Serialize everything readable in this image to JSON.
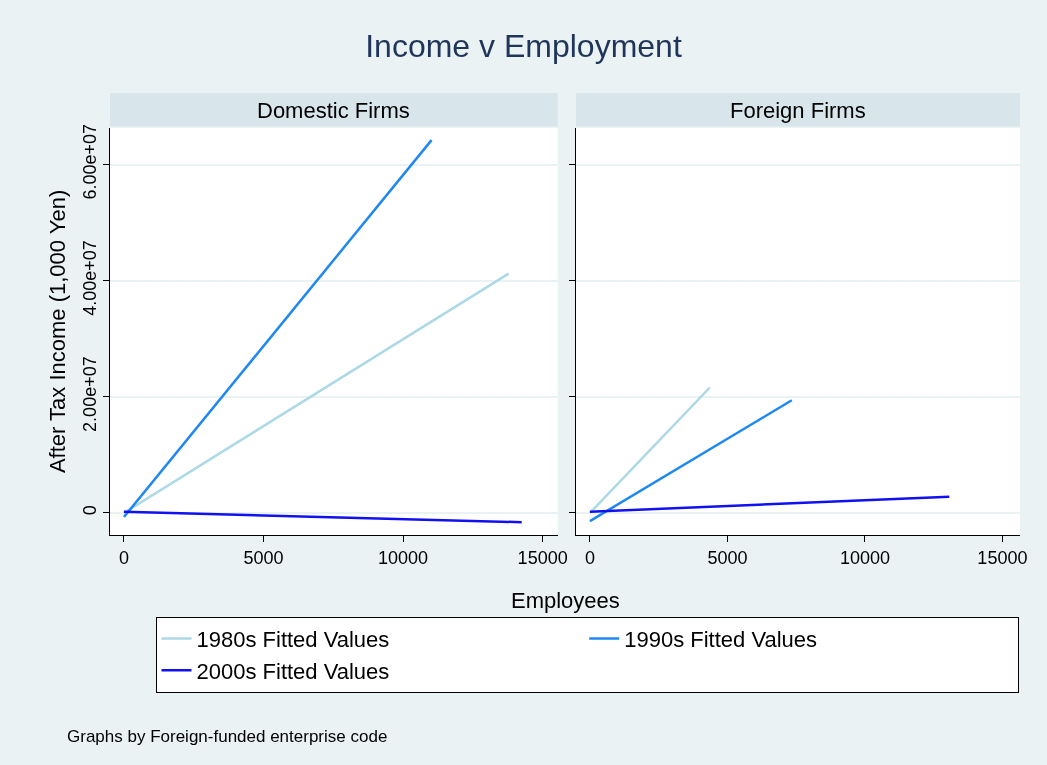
{
  "chart_data": [
    {
      "type": "line",
      "title": "Income v Employment",
      "subtitle": "Domestic Firms",
      "xlabel": "Employees",
      "ylabel": "After Tax Income (1,000 Yen)",
      "xlim": [
        -500,
        15540
      ],
      "xticks": [
        0,
        5000,
        10000,
        15000
      ],
      "ylim": [
        -3800000,
        66300000
      ],
      "yticks": [
        0,
        {
          "value": 20000000,
          "label": "2.00e+07"
        },
        {
          "value": 40000000,
          "label": "4.00e+07"
        },
        {
          "value": 60000000,
          "label": "6.00e+07"
        }
      ],
      "grid": "y",
      "legend": "bottom",
      "annotations": [
        "Graphs by Foreign-funded enterprise code"
      ],
      "series": [
        {
          "name": "1980s Fitted Values",
          "color": "#add8e6",
          "x": [
            0,
            13780
          ],
          "values": [
            0,
            41200000
          ]
        },
        {
          "name": "1990s Fitted Values",
          "color": "#1e88f0",
          "x": [
            0,
            11020
          ],
          "values": [
            -700000,
            64200000
          ]
        },
        {
          "name": "2000s Fitted Values",
          "color": "#1010f0",
          "x": [
            0,
            14250
          ],
          "values": [
            200000,
            -1600000
          ]
        }
      ]
    },
    {
      "type": "line",
      "subtitle": "Foreign Firms",
      "xlim": [
        -510,
        15640
      ],
      "xticks": [
        0,
        5000,
        10000,
        15000
      ],
      "ylim": [
        -3800000,
        66300000
      ],
      "yticks": [
        {
          "value": 0,
          "label": null
        },
        {
          "value": 20000000,
          "label": null
        },
        {
          "value": 40000000,
          "label": null
        },
        {
          "value": 60000000,
          "label": null
        }
      ],
      "grid": "y",
      "tick_labels": "x",
      "series": [
        {
          "color": "#add8e6",
          "x": [
            0,
            4360
          ],
          "values": [
            0,
            21600000
          ]
        },
        {
          "color": "#1e88f0",
          "x": [
            0,
            7340
          ],
          "values": [
            -1400000,
            19400000
          ]
        },
        {
          "color": "#1010f0",
          "x": [
            0,
            13070
          ],
          "values": [
            200000,
            2800000
          ]
        }
      ]
    }
  ]
}
